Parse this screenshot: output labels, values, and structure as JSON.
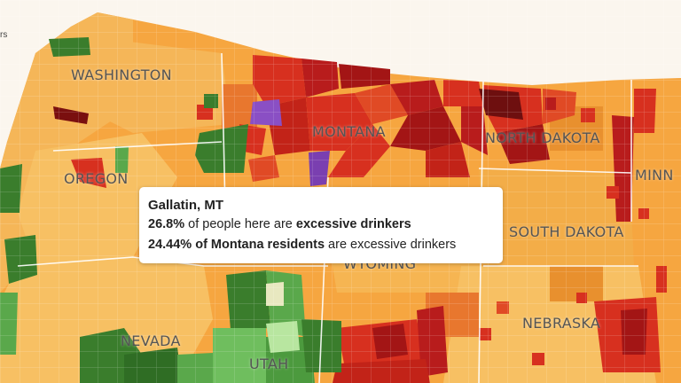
{
  "map": {
    "legend_fragment": "rs",
    "state_labels": {
      "washington": "WASHINGTON",
      "oregon": "OREGON",
      "montana": "MONTANA",
      "north_dakota": "NORTH DAKOTA",
      "minnesota": "MINN",
      "south_dakota": "SOUTH DAKOTA",
      "wyoming": "WYOMING",
      "nebraska": "NEBRASKA",
      "nevada": "NEVADA",
      "utah": "UTAH"
    },
    "colors": {
      "background": "#f6a640",
      "light_orange": "#f7c063",
      "orange": "#f0a030",
      "deep_orange": "#e8772e",
      "red": "#d7301f",
      "dark_red": "#a31515",
      "darkest_red": "#7a0f0f",
      "dark_green": "#3a7d2c",
      "green": "#5aa84b",
      "light_green": "#b8e6a0",
      "purple": "#8a4fc4"
    }
  },
  "tooltip": {
    "county": "Gallatin, MT",
    "county_pct": "26.8%",
    "line1_mid": " of people here are ",
    "line1_bold": "excessive drinkers",
    "state_bold": "24.44% of Montana residents",
    "line2_rest": " are excessive drinkers"
  }
}
